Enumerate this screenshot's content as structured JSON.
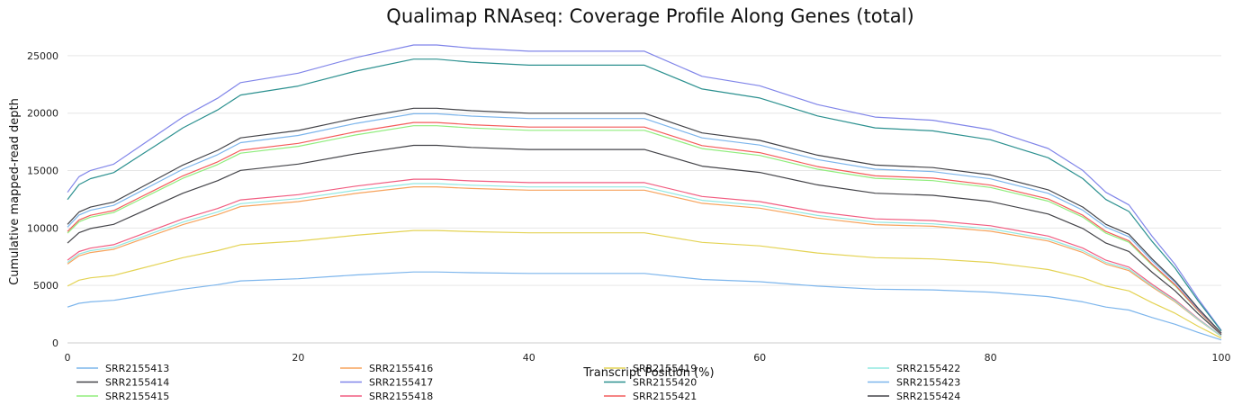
{
  "chart_data": {
    "type": "line",
    "title": "Qualimap RNAseq: Coverage Profile Along Genes (total)",
    "xlabel": "Transcript Position (%)",
    "ylabel": "Cumulative mapped-read depth",
    "xlim": [
      0,
      100
    ],
    "ylim": [
      0,
      27500
    ],
    "xticks": [
      0,
      20,
      40,
      60,
      80,
      100
    ],
    "yticks": [
      0,
      5000,
      10000,
      15000,
      20000,
      25000
    ],
    "x": [
      0,
      1,
      2,
      4,
      6,
      8,
      10,
      13,
      15,
      20,
      25,
      30,
      32,
      35,
      40,
      45,
      50,
      55,
      60,
      65,
      70,
      75,
      80,
      85,
      88,
      90,
      92,
      94,
      96,
      98,
      100
    ],
    "shape": [
      0.48,
      0.53,
      0.55,
      0.57,
      0.62,
      0.67,
      0.72,
      0.78,
      0.83,
      0.86,
      0.91,
      0.95,
      0.95,
      0.94,
      0.93,
      0.93,
      0.93,
      0.85,
      0.82,
      0.76,
      0.72,
      0.71,
      0.68,
      0.62,
      0.55,
      0.48,
      0.44,
      0.34,
      0.25,
      0.14,
      0.04
    ],
    "grid": true,
    "legend_position": "bottom",
    "series": [
      {
        "name": "SRR2155413",
        "color": "#7cb5ec",
        "peak": 6500
      },
      {
        "name": "SRR2155414",
        "color": "#434348",
        "peak": 18100
      },
      {
        "name": "SRR2155415",
        "color": "#90ed7d",
        "peak": 19900
      },
      {
        "name": "SRR2155416",
        "color": "#f7a35c",
        "peak": 14300
      },
      {
        "name": "SRR2155417",
        "color": "#8085e9",
        "peak": 27300
      },
      {
        "name": "SRR2155418",
        "color": "#f15c80",
        "peak": 15000
      },
      {
        "name": "SRR2155419",
        "color": "#e4d354",
        "peak": 10300
      },
      {
        "name": "SRR2155420",
        "color": "#2b908f",
        "peak": 26000
      },
      {
        "name": "SRR2155421",
        "color": "#f45b5b",
        "peak": 20200
      },
      {
        "name": "SRR2155422",
        "color": "#91e8e1",
        "peak": 14600
      },
      {
        "name": "SRR2155423",
        "color": "#7cb5ec",
        "peak": 21000
      },
      {
        "name": "SRR2155424",
        "color": "#434348",
        "peak": 21500
      }
    ]
  }
}
